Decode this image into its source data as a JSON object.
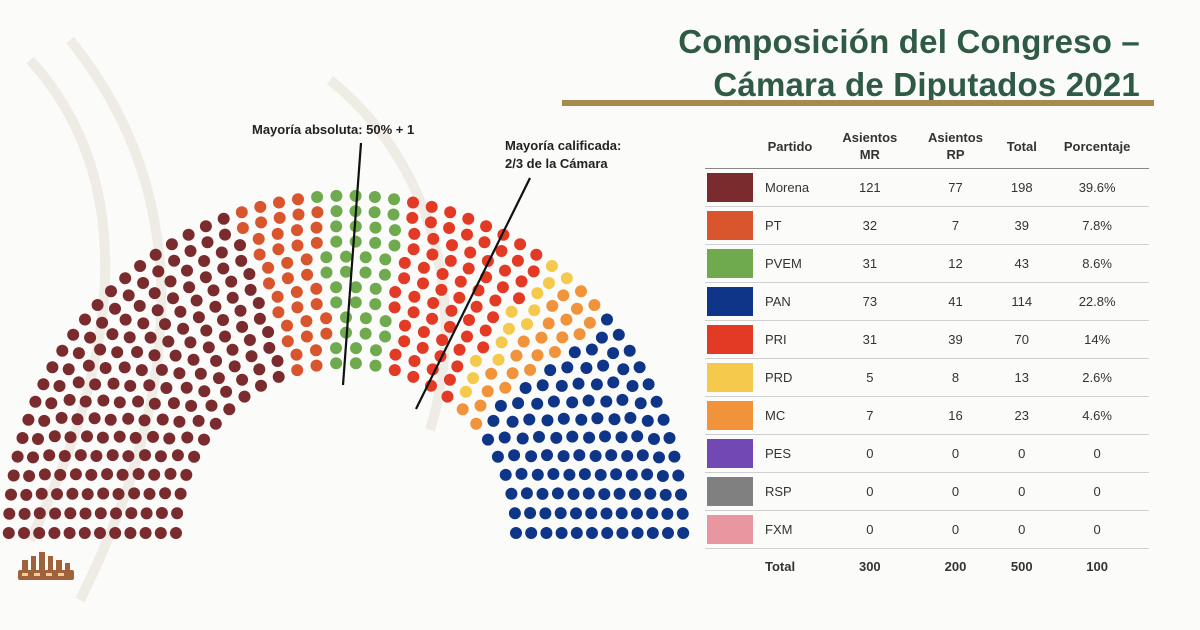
{
  "title": {
    "line1": "Composición del Congreso –",
    "line2": "Cámara de Diputados 2021"
  },
  "annotations": {
    "majority_absolute": "Mayoría absoluta: 50% + 1",
    "majority_qualified_line1": "Mayoría calificada:",
    "majority_qualified_line2": "2/3 de la Cámara"
  },
  "table": {
    "headers": {
      "party": "Partido",
      "mr_line1": "Asientos",
      "mr_line2": "MR",
      "rp_line1": "Asientos",
      "rp_line2": "RP",
      "total": "Total",
      "percent": "Porcentaje"
    },
    "total_row": {
      "label": "Total",
      "mr": "300",
      "rp": "200",
      "total": "500",
      "percent": "100"
    }
  },
  "chart_data": {
    "type": "parliament",
    "total_seats": 500,
    "parties": [
      {
        "name": "Morena",
        "color": "#7a2b2e",
        "mr": "121",
        "rp": "77",
        "total": "198",
        "percent": "39.6%"
      },
      {
        "name": "PT",
        "color": "#d9552e",
        "mr": "32",
        "rp": "7",
        "total": "39",
        "percent": "7.8%"
      },
      {
        "name": "PVEM",
        "color": "#6fab4e",
        "mr": "31",
        "rp": "12",
        "total": "43",
        "percent": "8.6%"
      },
      {
        "name": "PAN",
        "color": "#0f3588",
        "mr": "73",
        "rp": "41",
        "total": "114",
        "percent": "22.8%"
      },
      {
        "name": "PRI",
        "color": "#e33a25",
        "mr": "31",
        "rp": "39",
        "total": "70",
        "percent": "14%"
      },
      {
        "name": "PRD",
        "color": "#f5c94b",
        "mr": "5",
        "rp": "8",
        "total": "13",
        "percent": "2.6%"
      },
      {
        "name": "MC",
        "color": "#f0933a",
        "mr": "7",
        "rp": "16",
        "total": "23",
        "percent": "4.6%"
      },
      {
        "name": "PES",
        "color": "#7248b5",
        "mr": "0",
        "rp": "0",
        "total": "0",
        "percent": "0"
      },
      {
        "name": "RSP",
        "color": "#808080",
        "mr": "0",
        "rp": "0",
        "total": "0",
        "percent": "0"
      },
      {
        "name": "FXM",
        "color": "#e896a0",
        "mr": "0",
        "rp": "0",
        "total": "0",
        "percent": "0"
      }
    ],
    "seat_order": [
      "Morena",
      "PT",
      "PVEM",
      "PRI",
      "PRD",
      "MC",
      "PAN"
    ],
    "thresholds": [
      "50% + 1",
      "2/3"
    ]
  }
}
